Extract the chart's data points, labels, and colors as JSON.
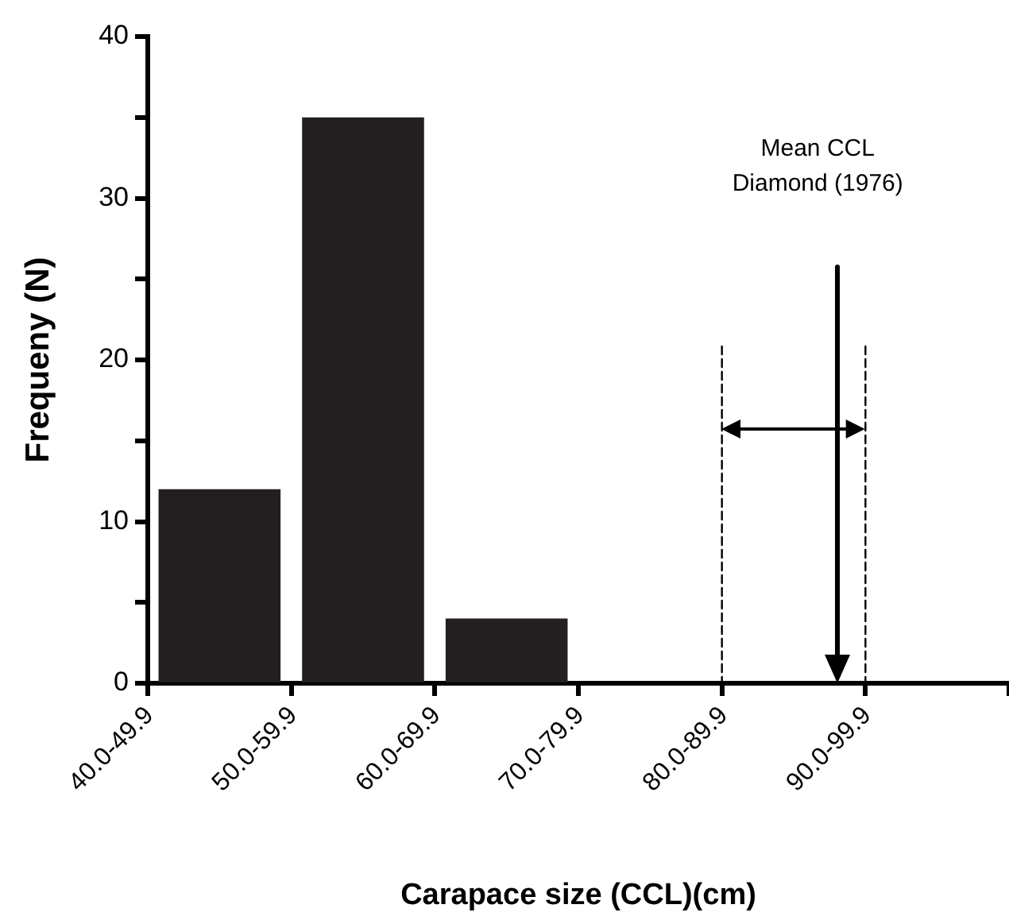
{
  "chart_data": {
    "type": "bar",
    "xlabel": "Carapace size (CCL)(cm)",
    "ylabel": "Frequeny (N)",
    "categories": [
      "40.0-49.9",
      "50.0-59.9",
      "60.0-69.9",
      "70.0-79.9",
      "80.0-89.9",
      "90.0-99.9"
    ],
    "values": [
      12,
      35,
      4,
      0,
      0,
      0
    ],
    "color": "#231f20",
    "ylim": [
      0,
      40
    ],
    "yticks": [
      0,
      {
        "value": 5,
        "label": null
      },
      10,
      {
        "value": 15,
        "label": null
      },
      20,
      {
        "value": 25,
        "label": null
      },
      30,
      {
        "value": 35,
        "label": null
      },
      40
    ],
    "ref_lines": [
      {
        "axis": "x",
        "value": "80.0-89.9",
        "line_style": "dashed"
      },
      {
        "axis": "x",
        "value": "90.0-99.9",
        "line_style": "dashed"
      }
    ],
    "annotations": [
      "Mean CCL Diamond (1976)"
    ],
    "legend": false
  }
}
